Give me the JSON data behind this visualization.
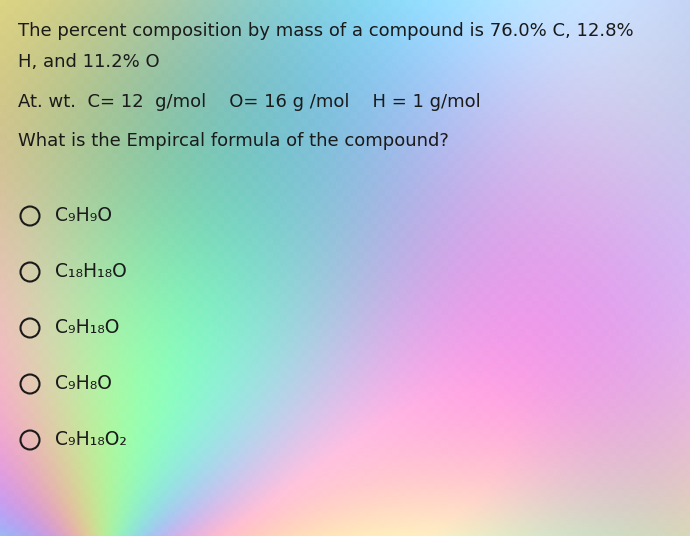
{
  "line1": "The percent composition by mass of a compound is 76.0% C, 12.8%",
  "line2": "H, and 11.2% O",
  "line3": "At. wt.  C= 12  g/mol    O= 16 g /mol    H = 1 g/mol",
  "line4": "What is the Empircal formula of the compound?",
  "option_texts": [
    "C₉H₉O",
    "C₁₈H₁₈O",
    "C₉H₁₈O",
    "C₉H₈O",
    "C₉H₁₈O₂"
  ],
  "text_color": "#1a1a1a",
  "font_size_body": 13.0,
  "font_size_options": 13.5,
  "figsize": [
    6.9,
    5.36
  ],
  "dpi": 100
}
